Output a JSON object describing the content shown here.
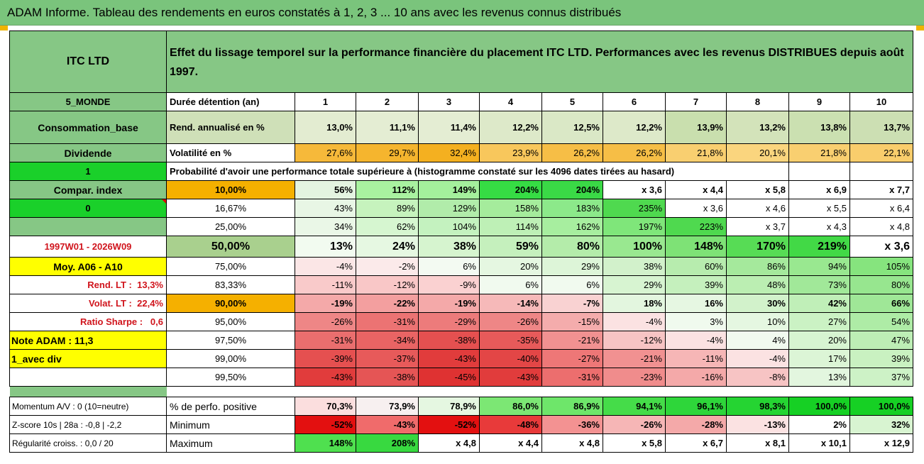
{
  "title": "ADAM Informe. Tableau des rendements en euros constatés à 1, 2, 3 ... 10 ans avec les revenus connus distribués",
  "header": {
    "name": "ITC LTD",
    "description": "Effet du lissage temporel sur la performance financière du placement ITC LTD. Performances avec les revenus DISTRIBUES depuis août 1997."
  },
  "side": {
    "region": "5_MONDE",
    "sector": "Consommation_base",
    "type": "Dividende",
    "value_1": "1",
    "compar_index": "Compar. index",
    "value_0": "0",
    "blank": "",
    "period": "1997W01 - 2026W09",
    "moy": "Moy. A06 - A10",
    "rend_lt_label": "Rend. LT :",
    "rend_lt_value": "13,3%",
    "volat_lt_label": "Volat. LT :",
    "volat_lt_value": "22,4%",
    "sharpe_label": "Ratio Sharpe :",
    "sharpe_value": "0,6",
    "note": "Note ADAM : 11,3",
    "div": "1_avec div"
  },
  "rows": {
    "duration_label": "Durée détention (an)",
    "years": [
      "1",
      "2",
      "3",
      "4",
      "5",
      "6",
      "7",
      "8",
      "9",
      "10"
    ],
    "rend_label": "Rend. annualisé en %",
    "rend": [
      "13,0%",
      "11,1%",
      "11,4%",
      "12,2%",
      "12,5%",
      "12,2%",
      "13,9%",
      "13,2%",
      "13,8%",
      "13,7%"
    ],
    "vol_label": "Volatilité en %",
    "vol": [
      "27,6%",
      "29,7%",
      "32,4%",
      "23,9%",
      "26,2%",
      "26,2%",
      "21,8%",
      "20,1%",
      "21,8%",
      "22,1%"
    ],
    "proba_label": "Probabilité d'avoir une performance totale supérieure à (histogramme constaté sur les 4096 dates tirées au hasard)"
  },
  "quantiles": [
    {
      "q": "10,00%",
      "vals": [
        "56%",
        "112%",
        "149%",
        "204%",
        "204%",
        "x 3,6",
        "x 4,4",
        "x 5,8",
        "x 6,9",
        "x 7,7"
      ]
    },
    {
      "q": "16,67%",
      "vals": [
        "43%",
        "89%",
        "129%",
        "158%",
        "183%",
        "235%",
        "x 3,6",
        "x 4,6",
        "x 5,5",
        "x 6,4"
      ]
    },
    {
      "q": "25,00%",
      "vals": [
        "34%",
        "62%",
        "104%",
        "114%",
        "162%",
        "197%",
        "223%",
        "x 3,7",
        "x 4,3",
        "x 4,8"
      ]
    },
    {
      "q": "50,00%",
      "vals": [
        "13%",
        "24%",
        "38%",
        "59%",
        "80%",
        "100%",
        "148%",
        "170%",
        "219%",
        "x 3,6"
      ]
    },
    {
      "q": "75,00%",
      "vals": [
        "-4%",
        "-2%",
        "6%",
        "20%",
        "29%",
        "38%",
        "60%",
        "86%",
        "94%",
        "105%"
      ]
    },
    {
      "q": "83,33%",
      "vals": [
        "-11%",
        "-12%",
        "-9%",
        "6%",
        "6%",
        "29%",
        "39%",
        "48%",
        "73%",
        "80%"
      ]
    },
    {
      "q": "90,00%",
      "vals": [
        "-19%",
        "-22%",
        "-19%",
        "-14%",
        "-7%",
        "18%",
        "16%",
        "30%",
        "42%",
        "66%"
      ]
    },
    {
      "q": "95,00%",
      "vals": [
        "-26%",
        "-31%",
        "-29%",
        "-26%",
        "-15%",
        "-4%",
        "3%",
        "10%",
        "27%",
        "54%"
      ]
    },
    {
      "q": "97,50%",
      "vals": [
        "-31%",
        "-34%",
        "-38%",
        "-35%",
        "-21%",
        "-12%",
        "-4%",
        "4%",
        "20%",
        "47%"
      ]
    },
    {
      "q": "99,00%",
      "vals": [
        "-39%",
        "-37%",
        "-43%",
        "-40%",
        "-27%",
        "-21%",
        "-11%",
        "-4%",
        "17%",
        "39%"
      ]
    },
    {
      "q": "99,50%",
      "vals": [
        "-43%",
        "-38%",
        "-45%",
        "-43%",
        "-31%",
        "-23%",
        "-16%",
        "-8%",
        "13%",
        "37%"
      ]
    }
  ],
  "bottom": [
    {
      "side": "Momentum A/V : 0 (10=neutre)",
      "label": "% de perfo. positive",
      "vals": [
        "70,3%",
        "73,9%",
        "78,9%",
        "86,0%",
        "86,9%",
        "94,1%",
        "96,1%",
        "98,3%",
        "100,0%",
        "100,0%"
      ]
    },
    {
      "side": "Z-score 10s | 28a : -0,8 | -2,2",
      "label": "Minimum",
      "vals": [
        "-52%",
        "-43%",
        "-52%",
        "-48%",
        "-36%",
        "-26%",
        "-28%",
        "-13%",
        "2%",
        "32%"
      ]
    },
    {
      "side": "Régularité croiss. : 0,0 / 20",
      "label": "Maximum",
      "vals": [
        "148%",
        "208%",
        "x 4,8",
        "x 4,4",
        "x 4,8",
        "x 5,8",
        "x 6,7",
        "x 8,1",
        "x 10,1",
        "x 12,9"
      ]
    }
  ],
  "colors": {
    "quantiles": [
      [
        "#e4f4e1",
        "#a9f2a0",
        "#a4f09c",
        "#36dc44",
        "#3ad946",
        "#ffffff",
        "#ffffff",
        "#ffffff",
        "#ffffff",
        "#ffffff"
      ],
      [
        "#e8f6e5",
        "#c6f3bd",
        "#b1ecaa",
        "#a5ec9c",
        "#8ce98a",
        "#4fd94f",
        "#ffffff",
        "#ffffff",
        "#ffffff",
        "#ffffff"
      ],
      [
        "#eaf7e7",
        "#d6f6d0",
        "#c4f2bf",
        "#bef0b6",
        "#a7ee9f",
        "#7fe67a",
        "#4fd94f",
        "#ffffff",
        "#ffffff",
        "#ffffff"
      ],
      [
        "#f2fbf0",
        "#e6f8e2",
        "#d6f4cf",
        "#c5f0bd",
        "#b4ecaa",
        "#99e890",
        "#7ee276",
        "#57dc55",
        "#42d946",
        "#ffffff"
      ],
      [
        "#fbe6e6",
        "#fbeaea",
        "#f3faf2",
        "#e5f7e1",
        "#ddf5d8",
        "#d2f1cb",
        "#b7ecae",
        "#a5e99c",
        "#99e890",
        "#86e47e"
      ],
      [
        "#f9caca",
        "#f9c7c7",
        "#fad1d1",
        "#f1faef",
        "#f1faef",
        "#d7f4d1",
        "#c5f0bd",
        "#bbeeb2",
        "#a1e899",
        "#97e68f"
      ],
      [
        "#f4a9a9",
        "#f39f9f",
        "#f4a9a9",
        "#f6b9b9",
        "#f9d2d2",
        "#e3f6df",
        "#e6f7e2",
        "#d2f2cb",
        "#c0efb8",
        "#9fe797"
      ],
      [
        "#ee8686",
        "#ec7373",
        "#ed7b7b",
        "#ee8686",
        "#f4acac",
        "#fbe2e2",
        "#f0faee",
        "#e5f7e1",
        "#cbf2c4",
        "#aeeca6"
      ],
      [
        "#ea6e6e",
        "#e96464",
        "#e55050",
        "#e75a5a",
        "#f19191",
        "#f7c4c4",
        "#fbe2e2",
        "#f1faef",
        "#d7f4d1",
        "#bdeeb5"
      ],
      [
        "#e55050",
        "#e75a5a",
        "#e13c3c",
        "#e34646",
        "#ee7777",
        "#f19191",
        "#f6b6b6",
        "#fbe2e2",
        "#dcf5d6",
        "#c9f1c1"
      ],
      [
        "#e13c3c",
        "#e55555",
        "#df3232",
        "#e13c3c",
        "#ec6e6e",
        "#f08c8c",
        "#f4a9a9",
        "#f7c4c4",
        "#e3f6df",
        "#cdf2c6"
      ]
    ],
    "bottom": [
      [
        "#fbdede",
        "#f7f0f0",
        "#e5f7e1",
        "#7ce774",
        "#6ee66a",
        "#45dc49",
        "#2ed63a",
        "#25d432",
        "#16d024",
        "#16d024"
      ],
      [
        "#e31010",
        "#f06b6b",
        "#e31010",
        "#e83a3a",
        "#f39292",
        "#f6b6b6",
        "#f4a9a9",
        "#fbe2e2",
        "#ffffff",
        "#d8f4d1"
      ],
      [
        "#4fe04f",
        "#38d940",
        "#ffffff",
        "#ffffff",
        "#ffffff",
        "#ffffff",
        "#ffffff",
        "#ffffff",
        "#ffffff",
        "#ffffff"
      ]
    ]
  }
}
